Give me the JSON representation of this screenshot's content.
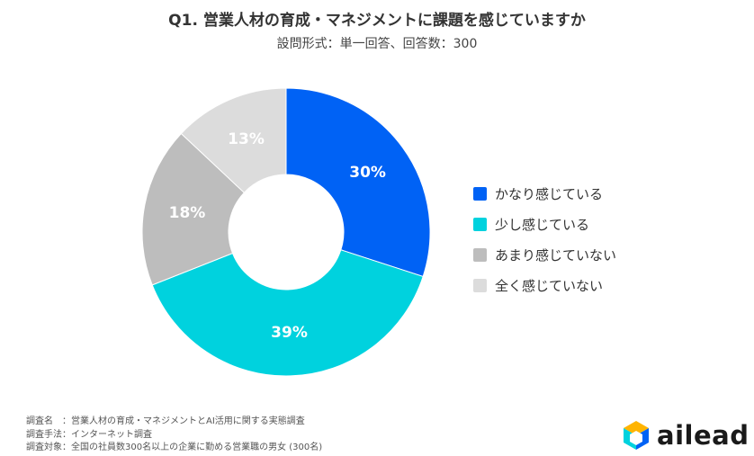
{
  "header": {
    "title": "Q1. 営業人材の育成・マネジメントに課題を感じていますか",
    "subtitle": "設問形式：単一回答、回答数：300"
  },
  "chart_data": {
    "type": "pie",
    "categories": [
      "かなり感じている",
      "少し感じている",
      "あまり感じていない",
      "全く感じていない"
    ],
    "values": [
      30,
      39,
      18,
      13
    ],
    "labels": [
      "30%",
      "39%",
      "18%",
      "13%"
    ],
    "colors": [
      "#0062f5",
      "#00d2de",
      "#bdbdbd",
      "#dcdcdc"
    ],
    "label_colors": [
      "#ffffff",
      "#ffffff",
      "#ffffff",
      "#ffffff"
    ],
    "legend_position": "right",
    "donut": true
  },
  "footnotes": [
    "調査名　：営業人材の育成・マネジメントとAI活用に関する実態調査",
    "調査手法：インターネット調査",
    "調査対象：全国の社員数300名以上の企業に勤める営業職の男女 (300名)"
  ],
  "logo": {
    "text": "ailead",
    "icon": "hexagon-cube-icon",
    "colors": [
      "#ffb400",
      "#00d2de",
      "#0062f5"
    ]
  }
}
